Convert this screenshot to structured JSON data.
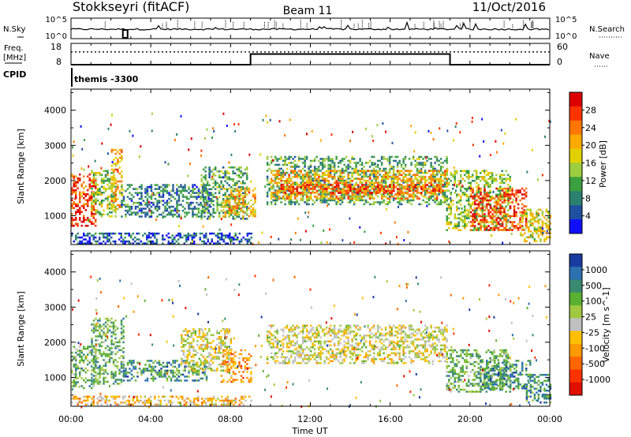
{
  "header": {
    "radar": "Stokkseyri (fitACF)",
    "beam": "Beam 11",
    "date": "11/Oct/2016"
  },
  "noise_panel": {
    "left_label": "N.Sky",
    "right_label": "N.Search",
    "left_ticks": [
      "10^5",
      "10^0"
    ],
    "right_ticks": [
      "10^5",
      "10^0"
    ]
  },
  "freq_panel": {
    "left_label_1": "Freq.",
    "left_label_2": "[MHz]",
    "left_ticks": [
      "18",
      "8"
    ],
    "right_label": "Nave",
    "right_ticks": [
      "60",
      "0"
    ],
    "cpid_label": "CPID",
    "cpid_value": "themis -3300",
    "freq_segments": [
      {
        "start": 0.0,
        "end": 9.0,
        "value": 8.0
      },
      {
        "start": 9.0,
        "end": 19.0,
        "value": 13.0
      },
      {
        "start": 19.0,
        "end": 24.0,
        "value": 8.0
      }
    ],
    "nave_level": 0.6
  },
  "x_axis": {
    "label": "Time UT",
    "ticks": [
      "00:00",
      "04:00",
      "08:00",
      "12:00",
      "16:00",
      "20:00",
      "00:00"
    ]
  },
  "chart_data": [
    {
      "type": "heatmap",
      "title": "Power",
      "xlabel": "Time UT",
      "ylabel": "Slant Range [km]",
      "xlim": [
        0,
        24
      ],
      "ylim": [
        180,
        4600
      ],
      "yticks": [
        "1000",
        "2000",
        "3000",
        "4000"
      ],
      "colorbar": {
        "label": "Power [dB]",
        "ticks": [
          "28",
          "24",
          "20",
          "16",
          "12",
          "8",
          "4"
        ],
        "colors": [
          "#dd0000",
          "#ff3300",
          "#ff7700",
          "#ffaa00",
          "#e0d000",
          "#9ccc40",
          "#3aa040",
          "#2c8070",
          "#2050a0",
          "#1010ff"
        ]
      },
      "regions": [
        {
          "t0": 0.0,
          "t1": 1.2,
          "r0": 700,
          "r1": 2200,
          "level": 8
        },
        {
          "t0": 1.0,
          "t1": 2.2,
          "r0": 1000,
          "r1": 2300,
          "level": 4
        },
        {
          "t0": 2.0,
          "t1": 2.5,
          "r0": 1200,
          "r1": 2900,
          "level": 6
        },
        {
          "t0": 2.5,
          "t1": 7.0,
          "r0": 1000,
          "r1": 1900,
          "level": 2
        },
        {
          "t0": 6.5,
          "t1": 8.8,
          "r0": 900,
          "r1": 2400,
          "level": 3
        },
        {
          "t0": 7.6,
          "t1": 9.2,
          "r0": 1000,
          "r1": 1800,
          "level": 6
        },
        {
          "t0": 9.8,
          "t1": 18.8,
          "r0": 1300,
          "r1": 2700,
          "level": 3
        },
        {
          "t0": 10.0,
          "t1": 18.8,
          "r0": 1500,
          "r1": 2300,
          "level": 6
        },
        {
          "t0": 10.5,
          "t1": 18.5,
          "r0": 1650,
          "r1": 1900,
          "level": 8
        },
        {
          "t0": 18.8,
          "t1": 22.0,
          "r0": 600,
          "r1": 2300,
          "level": 4
        },
        {
          "t0": 20.0,
          "t1": 22.8,
          "r0": 600,
          "r1": 1800,
          "level": 8
        },
        {
          "t0": 22.5,
          "t1": 24.0,
          "r0": 250,
          "r1": 1200,
          "level": 5
        },
        {
          "t0": 0.0,
          "t1": 9.0,
          "r0": 200,
          "r1": 520,
          "level": 1
        }
      ]
    },
    {
      "type": "heatmap",
      "title": "Velocity",
      "xlabel": "Time UT",
      "ylabel": "Slant Range [km]",
      "xlim": [
        0,
        24
      ],
      "ylim": [
        180,
        4600
      ],
      "yticks": [
        "1000",
        "2000",
        "3000",
        "4000"
      ],
      "colorbar": {
        "label": "Velocity [m s^-1]",
        "ticks": [
          "1000",
          "500",
          "100",
          "25",
          "-25",
          "-100",
          "-500",
          "-1000"
        ],
        "colors": [
          "#1a3ca0",
          "#2c70b0",
          "#3a8a70",
          "#5ab030",
          "#a0c840",
          "#c0c0c0",
          "#ffc000",
          "#ff9900",
          "#ff6600",
          "#ff3300",
          "#e01000"
        ]
      },
      "regions": [
        {
          "t0": 0.0,
          "t1": 1.2,
          "r0": 700,
          "r1": 1900,
          "level": 7
        },
        {
          "t0": 1.0,
          "t1": 2.6,
          "r0": 800,
          "r1": 2700,
          "level": 7
        },
        {
          "t0": 2.6,
          "t1": 6.8,
          "r0": 900,
          "r1": 1500,
          "level": 8
        },
        {
          "t0": 5.5,
          "t1": 8.0,
          "r0": 1200,
          "r1": 2400,
          "level": 5
        },
        {
          "t0": 7.5,
          "t1": 9.0,
          "r0": 900,
          "r1": 1800,
          "level": 3
        },
        {
          "t0": 9.8,
          "t1": 18.8,
          "r0": 1400,
          "r1": 2500,
          "level": 5
        },
        {
          "t0": 18.8,
          "t1": 22.0,
          "r0": 600,
          "r1": 1800,
          "level": 7
        },
        {
          "t0": 20.5,
          "t1": 23.0,
          "r0": 700,
          "r1": 1500,
          "level": 8
        },
        {
          "t0": 22.8,
          "t1": 24.0,
          "r0": 300,
          "r1": 1100,
          "level": 8
        },
        {
          "t0": 0.0,
          "t1": 9.0,
          "r0": 200,
          "r1": 480,
          "level": 4
        }
      ]
    }
  ]
}
